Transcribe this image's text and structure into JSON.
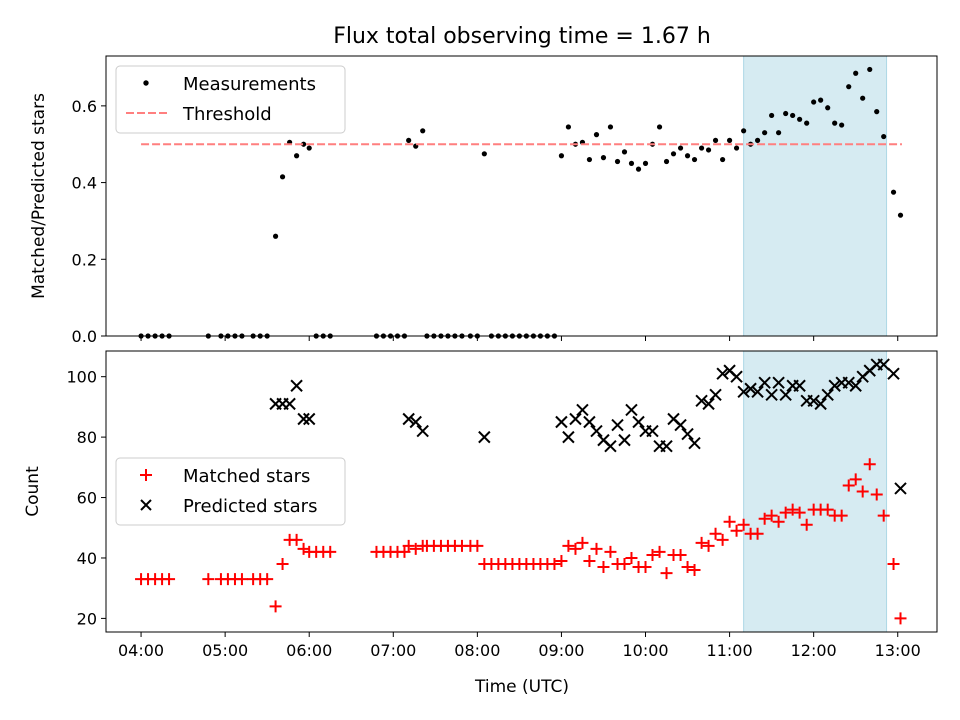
{
  "title": "Flux total observing time = 1.67 h",
  "colors": {
    "measurement": "#000000",
    "threshold": "#ff7f7f",
    "matched": "#ff0000",
    "predicted": "#000000",
    "shade": "#add8e6"
  },
  "chart_data": [
    {
      "type": "scatter",
      "panel": "top",
      "ylabel": "Matched/Predicted stars",
      "xlim": [
        3.583,
        13.467
      ],
      "ylim": [
        0.0,
        0.73
      ],
      "yticks": [
        0.0,
        0.2,
        0.4,
        0.6
      ],
      "ytick_labels": [
        "0.0",
        "0.2",
        "0.4",
        "0.6"
      ],
      "xticks": [
        4,
        5,
        6,
        7,
        8,
        9,
        10,
        11,
        12,
        13
      ],
      "grid": false,
      "legend_position": "upper left",
      "shaded_interval": [
        11.167,
        12.867
      ],
      "threshold": {
        "name": "Threshold",
        "value": 0.5,
        "x_range": [
          4.0,
          13.05
        ],
        "style": "dashed"
      },
      "series": [
        {
          "name": "Measurements",
          "marker": "dot",
          "points": [
            [
              4.0,
              0
            ],
            [
              4.083,
              0
            ],
            [
              4.167,
              0
            ],
            [
              4.25,
              0
            ],
            [
              4.333,
              0
            ],
            [
              4.8,
              0
            ],
            [
              4.95,
              0
            ],
            [
              5.033,
              0
            ],
            [
              5.117,
              0
            ],
            [
              5.2,
              0
            ],
            [
              5.333,
              0
            ],
            [
              5.417,
              0
            ],
            [
              5.5,
              0
            ],
            [
              5.6,
              0.26
            ],
            [
              5.683,
              0.415
            ],
            [
              5.767,
              0.505
            ],
            [
              5.85,
              0.47
            ],
            [
              5.933,
              0.5
            ],
            [
              6.0,
              0.49
            ],
            [
              6.083,
              0
            ],
            [
              6.167,
              0
            ],
            [
              6.25,
              0
            ],
            [
              6.8,
              0
            ],
            [
              6.883,
              0
            ],
            [
              6.967,
              0
            ],
            [
              7.05,
              0
            ],
            [
              7.133,
              0
            ],
            [
              7.183,
              0.51
            ],
            [
              7.267,
              0.495
            ],
            [
              7.35,
              0.535
            ],
            [
              7.4,
              0
            ],
            [
              7.483,
              0
            ],
            [
              7.567,
              0
            ],
            [
              7.65,
              0
            ],
            [
              7.733,
              0
            ],
            [
              7.817,
              0
            ],
            [
              7.917,
              0
            ],
            [
              8.0,
              0
            ],
            [
              8.083,
              0.475
            ],
            [
              8.167,
              0
            ],
            [
              8.25,
              0
            ],
            [
              8.333,
              0
            ],
            [
              8.417,
              0
            ],
            [
              8.5,
              0
            ],
            [
              8.583,
              0
            ],
            [
              8.667,
              0
            ],
            [
              8.75,
              0
            ],
            [
              8.833,
              0
            ],
            [
              8.917,
              0
            ],
            [
              9.0,
              0.47
            ],
            [
              9.083,
              0.545
            ],
            [
              9.167,
              0.5
            ],
            [
              9.25,
              0.505
            ],
            [
              9.333,
              0.46
            ],
            [
              9.417,
              0.525
            ],
            [
              9.5,
              0.465
            ],
            [
              9.583,
              0.545
            ],
            [
              9.667,
              0.455
            ],
            [
              9.75,
              0.48
            ],
            [
              9.833,
              0.45
            ],
            [
              9.917,
              0.435
            ],
            [
              10.0,
              0.45
            ],
            [
              10.083,
              0.5
            ],
            [
              10.167,
              0.545
            ],
            [
              10.25,
              0.455
            ],
            [
              10.333,
              0.475
            ],
            [
              10.417,
              0.49
            ],
            [
              10.5,
              0.47
            ],
            [
              10.583,
              0.46
            ],
            [
              10.667,
              0.49
            ],
            [
              10.75,
              0.485
            ],
            [
              10.833,
              0.51
            ],
            [
              10.917,
              0.46
            ],
            [
              11.0,
              0.51
            ],
            [
              11.083,
              0.49
            ],
            [
              11.167,
              0.535
            ],
            [
              11.25,
              0.5
            ],
            [
              11.333,
              0.51
            ],
            [
              11.417,
              0.53
            ],
            [
              11.5,
              0.575
            ],
            [
              11.583,
              0.53
            ],
            [
              11.667,
              0.58
            ],
            [
              11.75,
              0.575
            ],
            [
              11.833,
              0.565
            ],
            [
              11.917,
              0.555
            ],
            [
              12.0,
              0.61
            ],
            [
              12.083,
              0.615
            ],
            [
              12.167,
              0.595
            ],
            [
              12.25,
              0.555
            ],
            [
              12.333,
              0.55
            ],
            [
              12.417,
              0.65
            ],
            [
              12.5,
              0.685
            ],
            [
              12.583,
              0.62
            ],
            [
              12.667,
              0.695
            ],
            [
              12.75,
              0.585
            ],
            [
              12.833,
              0.52
            ],
            [
              12.95,
              0.375
            ],
            [
              13.033,
              0.315
            ]
          ]
        }
      ]
    },
    {
      "type": "scatter",
      "panel": "bottom",
      "xlabel": "Time (UTC)",
      "ylabel": "Count",
      "xlim": [
        3.583,
        13.467
      ],
      "ylim": [
        15.5,
        108.5
      ],
      "yticks": [
        20,
        40,
        60,
        80,
        100
      ],
      "ytick_labels": [
        "20",
        "40",
        "60",
        "80",
        "100"
      ],
      "xticks": [
        4,
        5,
        6,
        7,
        8,
        9,
        10,
        11,
        12,
        13
      ],
      "xtick_labels": [
        "04:00",
        "05:00",
        "06:00",
        "07:00",
        "08:00",
        "09:00",
        "10:00",
        "11:00",
        "12:00",
        "13:00"
      ],
      "grid": false,
      "legend_position": "center left",
      "shaded_interval": [
        11.167,
        12.867
      ],
      "series": [
        {
          "name": "Matched stars",
          "marker": "plus",
          "points": [
            [
              4.0,
              33
            ],
            [
              4.083,
              33
            ],
            [
              4.167,
              33
            ],
            [
              4.25,
              33
            ],
            [
              4.333,
              33
            ],
            [
              4.8,
              33
            ],
            [
              4.95,
              33
            ],
            [
              5.033,
              33
            ],
            [
              5.117,
              33
            ],
            [
              5.2,
              33
            ],
            [
              5.333,
              33
            ],
            [
              5.417,
              33
            ],
            [
              5.5,
              33
            ],
            [
              5.6,
              24
            ],
            [
              5.683,
              38
            ],
            [
              5.767,
              46
            ],
            [
              5.85,
              46
            ],
            [
              5.933,
              43
            ],
            [
              6.0,
              42
            ],
            [
              6.083,
              42
            ],
            [
              6.167,
              42
            ],
            [
              6.25,
              42
            ],
            [
              6.8,
              42
            ],
            [
              6.883,
              42
            ],
            [
              6.967,
              42
            ],
            [
              7.05,
              42
            ],
            [
              7.133,
              42
            ],
            [
              7.183,
              44
            ],
            [
              7.267,
              43
            ],
            [
              7.35,
              44
            ],
            [
              7.4,
              44
            ],
            [
              7.483,
              44
            ],
            [
              7.567,
              44
            ],
            [
              7.65,
              44
            ],
            [
              7.733,
              44
            ],
            [
              7.817,
              44
            ],
            [
              7.917,
              44
            ],
            [
              8.0,
              44
            ],
            [
              8.083,
              38
            ],
            [
              8.167,
              38
            ],
            [
              8.25,
              38
            ],
            [
              8.333,
              38
            ],
            [
              8.417,
              38
            ],
            [
              8.5,
              38
            ],
            [
              8.583,
              38
            ],
            [
              8.667,
              38
            ],
            [
              8.75,
              38
            ],
            [
              8.833,
              38
            ],
            [
              8.917,
              38
            ],
            [
              9.0,
              39
            ],
            [
              9.083,
              44
            ],
            [
              9.167,
              43
            ],
            [
              9.25,
              45
            ],
            [
              9.333,
              39
            ],
            [
              9.417,
              43
            ],
            [
              9.5,
              37
            ],
            [
              9.583,
              42
            ],
            [
              9.667,
              38
            ],
            [
              9.75,
              38
            ],
            [
              9.833,
              40
            ],
            [
              9.917,
              37
            ],
            [
              10.0,
              37
            ],
            [
              10.083,
              41
            ],
            [
              10.167,
              42
            ],
            [
              10.25,
              35
            ],
            [
              10.333,
              41
            ],
            [
              10.417,
              41
            ],
            [
              10.5,
              37
            ],
            [
              10.583,
              36
            ],
            [
              10.667,
              45
            ],
            [
              10.75,
              44
            ],
            [
              10.833,
              48
            ],
            [
              10.917,
              46
            ],
            [
              11.0,
              52
            ],
            [
              11.083,
              49
            ],
            [
              11.167,
              51
            ],
            [
              11.25,
              48
            ],
            [
              11.333,
              48
            ],
            [
              11.417,
              53
            ],
            [
              11.5,
              54
            ],
            [
              11.583,
              52
            ],
            [
              11.667,
              55
            ],
            [
              11.75,
              56
            ],
            [
              11.833,
              55
            ],
            [
              11.917,
              51
            ],
            [
              12.0,
              56
            ],
            [
              12.083,
              56
            ],
            [
              12.167,
              56
            ],
            [
              12.25,
              54
            ],
            [
              12.333,
              54
            ],
            [
              12.417,
              64
            ],
            [
              12.5,
              66
            ],
            [
              12.583,
              62
            ],
            [
              12.667,
              71
            ],
            [
              12.75,
              61
            ],
            [
              12.833,
              54
            ],
            [
              12.95,
              38
            ],
            [
              13.033,
              20
            ]
          ]
        },
        {
          "name": "Predicted stars",
          "marker": "x",
          "points": [
            [
              5.6,
              91
            ],
            [
              5.683,
              91
            ],
            [
              5.767,
              91
            ],
            [
              5.85,
              97
            ],
            [
              5.933,
              86
            ],
            [
              6.0,
              86
            ],
            [
              7.183,
              86
            ],
            [
              7.267,
              85
            ],
            [
              7.35,
              82
            ],
            [
              8.083,
              80
            ],
            [
              9.0,
              85
            ],
            [
              9.083,
              80
            ],
            [
              9.167,
              86
            ],
            [
              9.25,
              89
            ],
            [
              9.333,
              85
            ],
            [
              9.417,
              82
            ],
            [
              9.5,
              79
            ],
            [
              9.583,
              77
            ],
            [
              9.667,
              84
            ],
            [
              9.75,
              79
            ],
            [
              9.833,
              89
            ],
            [
              9.917,
              85
            ],
            [
              10.0,
              82
            ],
            [
              10.083,
              82
            ],
            [
              10.167,
              77
            ],
            [
              10.25,
              77
            ],
            [
              10.333,
              86
            ],
            [
              10.417,
              84
            ],
            [
              10.5,
              81
            ],
            [
              10.583,
              78
            ],
            [
              10.667,
              92
            ],
            [
              10.75,
              91
            ],
            [
              10.833,
              94
            ],
            [
              10.917,
              101
            ],
            [
              11.0,
              102
            ],
            [
              11.083,
              100
            ],
            [
              11.167,
              95
            ],
            [
              11.25,
              96
            ],
            [
              11.333,
              95
            ],
            [
              11.417,
              98
            ],
            [
              11.5,
              94
            ],
            [
              11.583,
              98
            ],
            [
              11.667,
              94
            ],
            [
              11.75,
              97
            ],
            [
              11.833,
              97
            ],
            [
              11.917,
              92
            ],
            [
              12.0,
              92
            ],
            [
              12.083,
              91
            ],
            [
              12.167,
              94
            ],
            [
              12.25,
              97
            ],
            [
              12.333,
              98
            ],
            [
              12.417,
              98
            ],
            [
              12.5,
              97
            ],
            [
              12.583,
              100
            ],
            [
              12.667,
              102
            ],
            [
              12.75,
              104
            ],
            [
              12.833,
              104
            ],
            [
              12.95,
              101
            ],
            [
              13.033,
              63
            ]
          ]
        }
      ]
    }
  ]
}
